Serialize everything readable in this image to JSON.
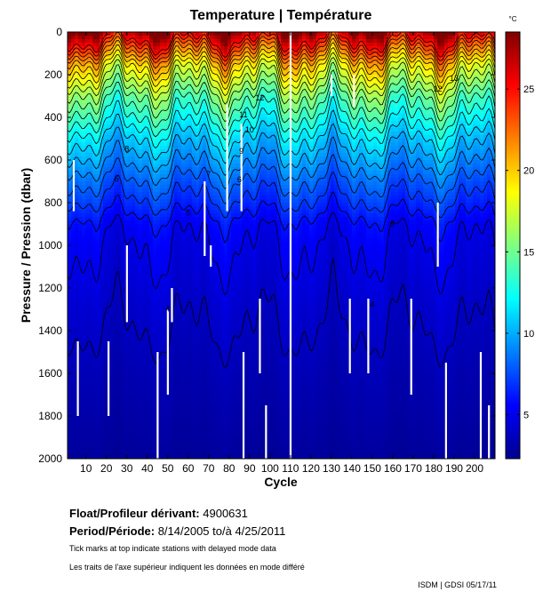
{
  "chart_data": {
    "type": "heatmap",
    "title": "Temperature | Température",
    "xlabel": "Cycle",
    "ylabel": "Pressure / Pression (dbar)",
    "colorbar_unit": "°C",
    "x_range": [
      1,
      210
    ],
    "y_range": [
      0,
      2000
    ],
    "x_ticks": [
      10,
      20,
      30,
      40,
      50,
      60,
      70,
      80,
      90,
      100,
      110,
      120,
      130,
      140,
      150,
      160,
      170,
      180,
      190,
      200
    ],
    "x_tick_labels": [
      "10",
      "20",
      "30",
      "40",
      "50",
      "60",
      "70",
      "80",
      "90",
      "100",
      "110",
      "120",
      "130",
      "140",
      "150",
      "160",
      "170",
      "180",
      "190",
      "200"
    ],
    "y_ticks": [
      0,
      200,
      400,
      600,
      800,
      1000,
      1200,
      1400,
      1600,
      1800,
      2000
    ],
    "y_tick_labels": [
      "0",
      "200",
      "400",
      "600",
      "800",
      "1000",
      "1200",
      "1400",
      "1600",
      "1800",
      "2000"
    ],
    "colorbar_range": [
      2.3,
      28.5
    ],
    "colorbar_ticks": [
      5,
      10,
      15,
      20,
      25
    ],
    "colorbar_tick_labels": [
      "5",
      "10",
      "15",
      "20",
      "25"
    ],
    "contour_levels": [
      4,
      5,
      6,
      7,
      8,
      9,
      10,
      11,
      12,
      13,
      14,
      15,
      16,
      17,
      18,
      19,
      20,
      21,
      22,
      23,
      24,
      25
    ],
    "contour_label_samples": [
      {
        "x": 190,
        "y": 230,
        "label": "13"
      },
      {
        "x": 182,
        "y": 280,
        "label": "12"
      },
      {
        "x": 95,
        "y": 320,
        "label": "12"
      },
      {
        "x": 87,
        "y": 400,
        "label": "11"
      },
      {
        "x": 90,
        "y": 470,
        "label": "10"
      },
      {
        "x": 30,
        "y": 560,
        "label": "8"
      },
      {
        "x": 86,
        "y": 570,
        "label": "9"
      },
      {
        "x": 25,
        "y": 700,
        "label": "6"
      },
      {
        "x": 85,
        "y": 705,
        "label": "6"
      },
      {
        "x": 70,
        "y": 680,
        "label": "7"
      },
      {
        "x": 60,
        "y": 860,
        "label": "5"
      },
      {
        "x": 160,
        "y": 910,
        "label": "5"
      },
      {
        "x": 50,
        "y": 1310,
        "label": "4"
      },
      {
        "x": 150,
        "y": 1290,
        "label": "4"
      }
    ],
    "depth_profile_means": [
      {
        "pressure": 0,
        "temp": 27.5
      },
      {
        "pressure": 50,
        "temp": 24.5
      },
      {
        "pressure": 100,
        "temp": 22.0
      },
      {
        "pressure": 150,
        "temp": 19.5
      },
      {
        "pressure": 200,
        "temp": 18.0
      },
      {
        "pressure": 250,
        "temp": 16.5
      },
      {
        "pressure": 300,
        "temp": 15.0
      },
      {
        "pressure": 400,
        "temp": 13.0
      },
      {
        "pressure": 500,
        "temp": 11.0
      },
      {
        "pressure": 600,
        "temp": 9.5
      },
      {
        "pressure": 700,
        "temp": 8.0
      },
      {
        "pressure": 800,
        "temp": 6.8
      },
      {
        "pressure": 900,
        "temp": 5.5
      },
      {
        "pressure": 1000,
        "temp": 5.0
      },
      {
        "pressure": 1300,
        "temp": 4.2
      },
      {
        "pressure": 1600,
        "temp": 3.6
      },
      {
        "pressure": 2000,
        "temp": 3.0
      }
    ],
    "missing_segments": [
      {
        "cycle": 4,
        "from": 600,
        "to": 840
      },
      {
        "cycle": 6,
        "from": 1450,
        "to": 1800
      },
      {
        "cycle": 21,
        "from": 1450,
        "to": 1800
      },
      {
        "cycle": 30,
        "from": 1000,
        "to": 1360
      },
      {
        "cycle": 45,
        "from": 1500,
        "to": 2000
      },
      {
        "cycle": 50,
        "from": 1300,
        "to": 1700
      },
      {
        "cycle": 52,
        "from": 1200,
        "to": 1360
      },
      {
        "cycle": 68,
        "from": 700,
        "to": 1050
      },
      {
        "cycle": 71,
        "from": 1000,
        "to": 1100
      },
      {
        "cycle": 79,
        "from": 340,
        "to": 840
      },
      {
        "cycle": 86,
        "from": 430,
        "to": 840
      },
      {
        "cycle": 87,
        "from": 1500,
        "to": 2000
      },
      {
        "cycle": 95,
        "from": 1250,
        "to": 1600
      },
      {
        "cycle": 98,
        "from": 1750,
        "to": 2000
      },
      {
        "cycle": 110,
        "from": 0,
        "to": 2000
      },
      {
        "cycle": 130,
        "from": 200,
        "to": 300
      },
      {
        "cycle": 139,
        "from": 1250,
        "to": 1600
      },
      {
        "cycle": 141,
        "from": 200,
        "to": 350
      },
      {
        "cycle": 148,
        "from": 1250,
        "to": 1600
      },
      {
        "cycle": 169,
        "from": 1250,
        "to": 1700
      },
      {
        "cycle": 182,
        "from": 800,
        "to": 1100
      },
      {
        "cycle": 186,
        "from": 1550,
        "to": 2000
      },
      {
        "cycle": 203,
        "from": 1500,
        "to": 2000
      },
      {
        "cycle": 207,
        "from": 1750,
        "to": 2000
      }
    ]
  },
  "info": {
    "float_label": "Float/Profileur dérivant:",
    "float_value": "4900631",
    "period_label": "Period/Période:",
    "period_value": "8/14/2005  to/à  4/25/2011",
    "note_en": "Tick marks at top indicate stations with delayed mode data",
    "note_fr": "Les traits de l'axe supérieur indiquent les données en mode différé",
    "credit": "ISDM | GDSI  05/17/11"
  }
}
